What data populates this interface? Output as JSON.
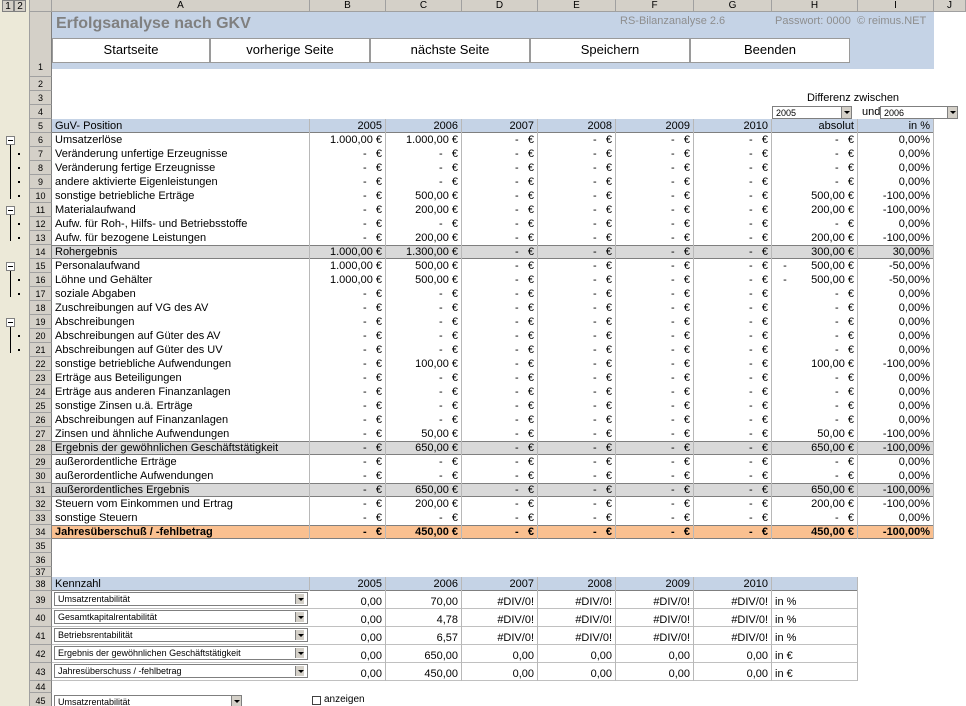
{
  "outline_levels": [
    "1",
    "2"
  ],
  "column_letters": [
    "A",
    "B",
    "C",
    "D",
    "E",
    "F",
    "G",
    "H",
    "I",
    "J"
  ],
  "row_numbers": [
    1,
    2,
    3,
    4,
    5,
    6,
    7,
    8,
    9,
    10,
    11,
    12,
    13,
    14,
    15,
    16,
    17,
    18,
    19,
    20,
    21,
    22,
    23,
    24,
    25,
    26,
    27,
    28,
    29,
    30,
    31,
    32,
    33,
    34,
    35,
    36,
    37,
    38,
    39,
    40,
    41,
    42,
    43,
    44,
    45
  ],
  "header": {
    "title": "Erfolgsanalyse nach GKV",
    "version": "RS-Bilanzanalyse 2.6",
    "password": "Passwort: 0000",
    "copyright": "© reimus.NET"
  },
  "buttons": [
    "Startseite",
    "vorherige Seite",
    "nächste Seite",
    "Speichern",
    "Beenden"
  ],
  "difference": {
    "label": "Differenz zwischen",
    "from": "2005",
    "and": "und",
    "to": "2006"
  },
  "guv": {
    "columns": [
      "GuV- Position",
      "2005",
      "2006",
      "2007",
      "2008",
      "2009",
      "2010",
      "absolut",
      "in %"
    ],
    "rows": [
      [
        "Umsatzerlöse",
        "1.000,00 €",
        "1.000,00 €",
        "-   €",
        "-   €",
        "-   €",
        "-   €",
        "-   €",
        "0,00%"
      ],
      [
        "Veränderung unfertige Erzeugnisse",
        "-   €",
        "-   €",
        "-   €",
        "-   €",
        "-   €",
        "-   €",
        "-   €",
        "0,00%"
      ],
      [
        "Veränderung fertige Erzeugnisse",
        "-   €",
        "-   €",
        "-   €",
        "-   €",
        "-   €",
        "-   €",
        "-   €",
        "0,00%"
      ],
      [
        "andere aktivierte Eigenleistungen",
        "-   €",
        "-   €",
        "-   €",
        "-   €",
        "-   €",
        "-   €",
        "-   €",
        "0,00%"
      ],
      [
        "sonstige betriebliche Erträge",
        "-   €",
        "500,00 €",
        "-   €",
        "-   €",
        "-   €",
        "-   €",
        "500,00 €",
        "-100,00%"
      ],
      [
        "Materialaufwand",
        "-   €",
        "200,00 €",
        "-   €",
        "-   €",
        "-   €",
        "-   €",
        "200,00 €",
        "-100,00%"
      ],
      [
        "Aufw. für Roh-, Hilfs- und Betriebsstoffe",
        "-   €",
        "-   €",
        "-   €",
        "-   €",
        "-   €",
        "-   €",
        "-   €",
        "0,00%"
      ],
      [
        "Aufw. für bezogene Leistungen",
        "-   €",
        "200,00 €",
        "-   €",
        "-   €",
        "-   €",
        "-   €",
        "200,00 €",
        "-100,00%"
      ],
      [
        "Rohergebnis",
        "1.000,00 €",
        "1.300,00 €",
        "-   €",
        "-   €",
        "-   €",
        "-   €",
        "300,00 €",
        "30,00%"
      ],
      [
        "Personalaufwand",
        "1.000,00 €",
        "500,00 €",
        "-   €",
        "-   €",
        "-   €",
        "-   €",
        "-        500,00 €",
        "-50,00%"
      ],
      [
        "Löhne und Gehälter",
        "1.000,00 €",
        "500,00 €",
        "-   €",
        "-   €",
        "-   €",
        "-   €",
        "-        500,00 €",
        "-50,00%"
      ],
      [
        "soziale Abgaben",
        "-   €",
        "-   €",
        "-   €",
        "-   €",
        "-   €",
        "-   €",
        "-   €",
        "0,00%"
      ],
      [
        "Zuschreibungen auf VG des AV",
        "-   €",
        "-   €",
        "-   €",
        "-   €",
        "-   €",
        "-   €",
        "-   €",
        "0,00%"
      ],
      [
        "Abschreibungen",
        "-   €",
        "-   €",
        "-   €",
        "-   €",
        "-   €",
        "-   €",
        "-   €",
        "0,00%"
      ],
      [
        "Abschreibungen auf Güter des AV",
        "-   €",
        "-   €",
        "-   €",
        "-   €",
        "-   €",
        "-   €",
        "-   €",
        "0,00%"
      ],
      [
        "Abschreibungen auf Güter des UV",
        "-   €",
        "-   €",
        "-   €",
        "-   €",
        "-   €",
        "-   €",
        "-   €",
        "0,00%"
      ],
      [
        "sonstige betriebliche Aufwendungen",
        "-   €",
        "100,00 €",
        "-   €",
        "-   €",
        "-   €",
        "-   €",
        "100,00 €",
        "-100,00%"
      ],
      [
        "Erträge aus Beteiligungen",
        "-   €",
        "-   €",
        "-   €",
        "-   €",
        "-   €",
        "-   €",
        "-   €",
        "0,00%"
      ],
      [
        "Erträge aus anderen Finanzanlagen",
        "-   €",
        "-   €",
        "-   €",
        "-   €",
        "-   €",
        "-   €",
        "-   €",
        "0,00%"
      ],
      [
        "sonstige Zinsen u.ä. Erträge",
        "-   €",
        "-   €",
        "-   €",
        "-   €",
        "-   €",
        "-   €",
        "-   €",
        "0,00%"
      ],
      [
        "Abschreibungen auf Finanzanlagen",
        "-   €",
        "-   €",
        "-   €",
        "-   €",
        "-   €",
        "-   €",
        "-   €",
        "0,00%"
      ],
      [
        "Zinsen und ähnliche Aufwendungen",
        "-   €",
        "50,00 €",
        "-   €",
        "-   €",
        "-   €",
        "-   €",
        "50,00 €",
        "-100,00%"
      ],
      [
        "Ergebnis der gewöhnlichen Geschäftstätigkeit",
        "-   €",
        "650,00 €",
        "-   €",
        "-   €",
        "-   €",
        "-   €",
        "650,00 €",
        "-100,00%"
      ],
      [
        "außerordentliche Erträge",
        "-   €",
        "-   €",
        "-   €",
        "-   €",
        "-   €",
        "-   €",
        "-   €",
        "0,00%"
      ],
      [
        "außerordentliche Aufwendungen",
        "-   €",
        "-   €",
        "-   €",
        "-   €",
        "-   €",
        "-   €",
        "-   €",
        "0,00%"
      ],
      [
        "außerordentliches Ergebnis",
        "-   €",
        "650,00 €",
        "-   €",
        "-   €",
        "-   €",
        "-   €",
        "650,00 €",
        "-100,00%"
      ],
      [
        "Steuern vom Einkommen und Ertrag",
        "-   €",
        "200,00 €",
        "-   €",
        "-   €",
        "-   €",
        "-   €",
        "200,00 €",
        "-100,00%"
      ],
      [
        "sonstige Steuern",
        "-   €",
        "-   €",
        "-   €",
        "-   €",
        "-   €",
        "-   €",
        "-   €",
        "0,00%"
      ],
      [
        "Jahresüberschuß / -fehlbetrag",
        "-   €",
        "450,00 €",
        "-   €",
        "-   €",
        "-   €",
        "-   €",
        "450,00 €",
        "-100,00%"
      ]
    ]
  },
  "kennzahl": {
    "columns": [
      "Kennzahl",
      "2005",
      "2006",
      "2007",
      "2008",
      "2009",
      "2010"
    ],
    "rows": [
      [
        "Umsatzrentabilität",
        "0,00",
        "70,00",
        "#DIV/0!",
        "#DIV/0!",
        "#DIV/0!",
        "#DIV/0!",
        "in %"
      ],
      [
        "Gesamtkapitalrentabilität",
        "0,00",
        "4,78",
        "#DIV/0!",
        "#DIV/0!",
        "#DIV/0!",
        "#DIV/0!",
        "in %"
      ],
      [
        "Betriebsrentabilität",
        "0,00",
        "6,57",
        "#DIV/0!",
        "#DIV/0!",
        "#DIV/0!",
        "#DIV/0!",
        "in %"
      ],
      [
        "Ergebnis der gewöhnlichen Geschäftstätigkeit",
        "0,00",
        "650,00",
        "0,00",
        "0,00",
        "0,00",
        "0,00",
        "in €"
      ],
      [
        "Jahresüberschuss / -fehlbetrag",
        "0,00",
        "450,00",
        "0,00",
        "0,00",
        "0,00",
        "0,00",
        "in €"
      ]
    ]
  },
  "footer": {
    "select": "Umsatzrentabilität",
    "checkbox": "anzeigen"
  }
}
